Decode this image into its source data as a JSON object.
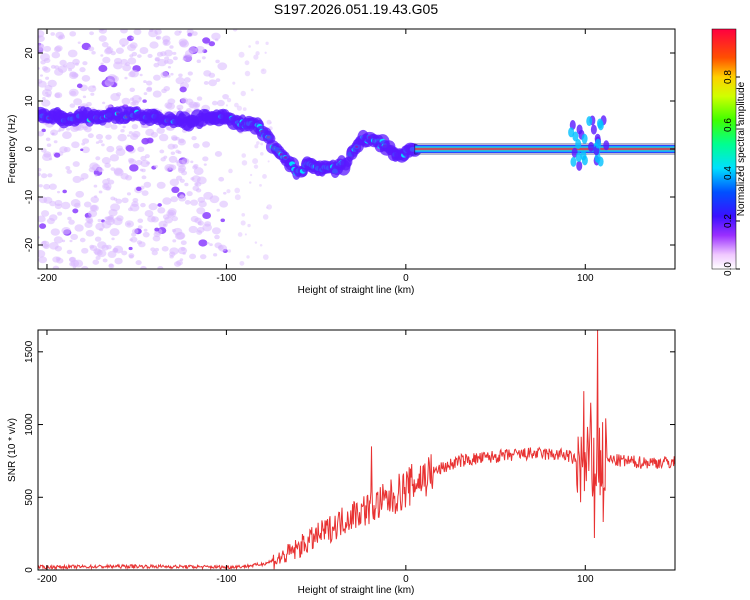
{
  "title": "S197.2026.051.19.43.G05",
  "chart_data": [
    {
      "type": "heatmap",
      "xlabel": "Height of straight line (km)",
      "ylabel": "Frequency (Hz)",
      "xlim": [
        -205,
        150
      ],
      "ylim": [
        -25,
        25
      ],
      "xticks": [
        -200,
        -100,
        0,
        100
      ],
      "yticks": [
        -20,
        -10,
        0,
        10,
        20
      ],
      "xtick_labels": [
        "-200",
        "-100",
        "0",
        "100"
      ],
      "ytick_labels": [
        "-20",
        "-10",
        "0",
        "10",
        "20"
      ],
      "colorbar": {
        "label": "Normalized spectral amplitude",
        "range": [
          0.0,
          1.0
        ],
        "ticks": [
          0.0,
          0.2,
          0.4,
          0.6,
          0.8
        ],
        "tick_labels": [
          "0.0",
          "0.2",
          "0.4",
          "0.6",
          "0.8"
        ]
      },
      "ridge": [
        {
          "x": -200,
          "f": 7.0
        },
        {
          "x": -190,
          "f": 6.5
        },
        {
          "x": -180,
          "f": 7.0
        },
        {
          "x": -170,
          "f": 6.5
        },
        {
          "x": -160,
          "f": 7.0
        },
        {
          "x": -150,
          "f": 7.0
        },
        {
          "x": -140,
          "f": 6.5
        },
        {
          "x": -130,
          "f": 6.0
        },
        {
          "x": -120,
          "f": 6.0
        },
        {
          "x": -110,
          "f": 6.5
        },
        {
          "x": -100,
          "f": 6.0
        },
        {
          "x": -90,
          "f": 5.5
        },
        {
          "x": -85,
          "f": 5.5
        },
        {
          "x": -80,
          "f": 4.0
        },
        {
          "x": -75,
          "f": 1.5
        },
        {
          "x": -70,
          "f": -1.0
        },
        {
          "x": -65,
          "f": -3.0
        },
        {
          "x": -60,
          "f": -5.0
        },
        {
          "x": -55,
          "f": -3.5
        },
        {
          "x": -50,
          "f": -4.0
        },
        {
          "x": -45,
          "f": -4.5
        },
        {
          "x": -40,
          "f": -4.0
        },
        {
          "x": -35,
          "f": -3.5
        },
        {
          "x": -30,
          "f": -1.0
        },
        {
          "x": -25,
          "f": 1.5
        },
        {
          "x": -20,
          "f": 2.0
        },
        {
          "x": -15,
          "f": 1.5
        },
        {
          "x": -10,
          "f": 0.0
        },
        {
          "x": -5,
          "f": -1.0
        },
        {
          "x": 0,
          "f": -0.5
        },
        {
          "x": 5,
          "f": 0.0
        },
        {
          "x": 150,
          "f": 0.0
        }
      ]
    },
    {
      "type": "line",
      "xlabel": "Height of straight line (km)",
      "ylabel": "SNR (10 * v/v)",
      "xlim": [
        -205,
        150
      ],
      "ylim": [
        0,
        1650
      ],
      "xticks": [
        -200,
        -100,
        0,
        100
      ],
      "yticks": [
        0,
        500,
        1000,
        1500
      ],
      "xtick_labels": [
        "-200",
        "-100",
        "0",
        "100"
      ],
      "ytick_labels": [
        "0",
        "500",
        "1000",
        "1500"
      ],
      "color": "#e83232",
      "trend": [
        {
          "x": -205,
          "y": 20
        },
        {
          "x": -150,
          "y": 25
        },
        {
          "x": -100,
          "y": 20
        },
        {
          "x": -90,
          "y": 25
        },
        {
          "x": -80,
          "y": 40
        },
        {
          "x": -70,
          "y": 80
        },
        {
          "x": -60,
          "y": 150
        },
        {
          "x": -50,
          "y": 230
        },
        {
          "x": -40,
          "y": 300
        },
        {
          "x": -30,
          "y": 380
        },
        {
          "x": -20,
          "y": 430
        },
        {
          "x": -10,
          "y": 480
        },
        {
          "x": 0,
          "y": 560
        },
        {
          "x": 10,
          "y": 640
        },
        {
          "x": 20,
          "y": 700
        },
        {
          "x": 30,
          "y": 750
        },
        {
          "x": 50,
          "y": 780
        },
        {
          "x": 70,
          "y": 800
        },
        {
          "x": 90,
          "y": 790
        },
        {
          "x": 100,
          "y": 700
        },
        {
          "x": 110,
          "y": 760
        },
        {
          "x": 130,
          "y": 740
        },
        {
          "x": 150,
          "y": 740
        }
      ],
      "spikes": [
        {
          "x": -19,
          "y": 850
        },
        {
          "x": 99,
          "y": 1230
        },
        {
          "x": 103,
          "y": 1150
        },
        {
          "x": 107,
          "y": 1650
        },
        {
          "x": 105,
          "y": 220
        },
        {
          "x": 110,
          "y": 330
        }
      ]
    }
  ]
}
